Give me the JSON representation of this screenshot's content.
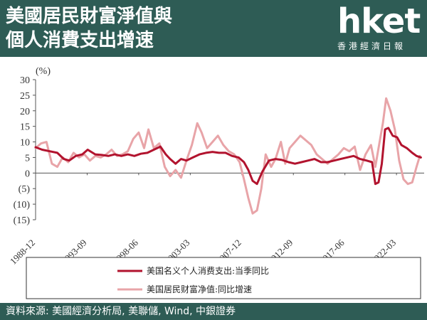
{
  "header": {
    "title_line1": "美國居民財富淨值與",
    "title_line2": "個人消費支出增速"
  },
  "brand": {
    "logo": "hket",
    "subtitle": "香港經濟日報"
  },
  "footer": {
    "source": "資料來源: 美國經濟分析局, 美聯儲, Wind, 中銀證券"
  },
  "colors": {
    "header_bg": "#2e5c55",
    "series_pce": "#b2132e",
    "series_wealth": "#e8a4a8"
  },
  "chart_data": {
    "type": "line",
    "ylabel": "(%)",
    "ylim": [
      -15,
      30
    ],
    "y_ticks": [
      30,
      25,
      20,
      15,
      10,
      5,
      0,
      -5,
      -10,
      -15
    ],
    "y_tick_labels": [
      "30",
      "25",
      "20",
      "15",
      "10",
      "5",
      "0",
      "(5)",
      "(10)",
      "(15)"
    ],
    "x_tick_labels": [
      "1988-12",
      "1993-09",
      "1998-06",
      "2003-03",
      "2007-12",
      "2012-09",
      "2017-06",
      "2022-03"
    ],
    "legend": "bottom-center-boxed",
    "series": [
      {
        "name": "美国名义个人消费支出:当季同比",
        "color": "#b2132e",
        "x": [
          1988.9,
          1989.5,
          1990.2,
          1990.9,
          1991.5,
          1992.0,
          1992.6,
          1993.2,
          1993.7,
          1994.4,
          1995.0,
          1995.6,
          1996.2,
          1996.8,
          1997.4,
          1998.0,
          1998.6,
          1999.2,
          1999.8,
          2000.4,
          2000.9,
          2001.3,
          2001.8,
          2002.3,
          2002.8,
          2003.4,
          2004.0,
          2004.6,
          2005.2,
          2005.8,
          2006.4,
          2007.0,
          2007.6,
          2008.1,
          2008.5,
          2008.9,
          2009.3,
          2009.8,
          2010.4,
          2011.0,
          2011.6,
          2012.2,
          2012.8,
          2013.4,
          2014.0,
          2014.6,
          2015.2,
          2015.8,
          2016.4,
          2017.0,
          2017.6,
          2018.2,
          2018.8,
          2019.4,
          2019.9,
          2020.2,
          2020.5,
          2020.8,
          2021.1,
          2021.4,
          2021.8,
          2022.2,
          2022.6,
          2023.1,
          2023.6,
          2024.0,
          2024.4
        ],
        "values": [
          8.3,
          7.5,
          7.0,
          6.5,
          4.5,
          4.0,
          5.5,
          6.0,
          7.5,
          6.0,
          5.8,
          5.5,
          6.0,
          5.5,
          6.0,
          5.5,
          6.2,
          6.5,
          7.5,
          8.5,
          6.0,
          4.5,
          3.0,
          4.5,
          4.0,
          5.0,
          6.0,
          6.5,
          6.8,
          6.5,
          6.5,
          5.5,
          5.0,
          3.5,
          1.0,
          -2.5,
          -3.5,
          0.5,
          4.0,
          4.5,
          4.2,
          3.5,
          3.0,
          3.5,
          4.0,
          4.5,
          3.5,
          3.5,
          4.0,
          4.5,
          5.0,
          5.5,
          4.5,
          4.0,
          3.5,
          -3.5,
          -3.0,
          3.0,
          14.0,
          14.5,
          12.0,
          11.5,
          9.0,
          8.0,
          6.5,
          5.5,
          5.0
        ]
      },
      {
        "name": "美国居民财富净值:同比增速",
        "color": "#e8a4a8",
        "x": [
          1988.9,
          1989.4,
          1989.9,
          1990.4,
          1990.9,
          1991.4,
          1991.9,
          1992.4,
          1992.9,
          1993.4,
          1993.9,
          1994.4,
          1994.9,
          1995.4,
          1995.9,
          1996.4,
          1996.9,
          1997.4,
          1997.9,
          1998.4,
          1998.9,
          1999.3,
          1999.8,
          2000.3,
          2000.8,
          2001.3,
          2001.8,
          2002.3,
          2002.8,
          2003.3,
          2003.8,
          2004.2,
          2004.7,
          2005.2,
          2005.7,
          2006.2,
          2006.7,
          2007.2,
          2007.7,
          2008.1,
          2008.5,
          2008.9,
          2009.3,
          2009.7,
          2010.1,
          2010.6,
          2011.0,
          2011.5,
          2011.9,
          2012.3,
          2012.8,
          2013.3,
          2013.8,
          2014.3,
          2014.8,
          2015.3,
          2015.8,
          2016.3,
          2016.8,
          2017.3,
          2017.8,
          2018.3,
          2018.8,
          2019.3,
          2019.8,
          2020.2,
          2020.5,
          2020.9,
          2021.2,
          2021.6,
          2022.0,
          2022.4,
          2022.8,
          2023.2,
          2023.6,
          2024.0,
          2024.3
        ],
        "values": [
          8.0,
          9.5,
          10.0,
          3.0,
          2.0,
          5.0,
          3.5,
          6.5,
          5.0,
          6.0,
          4.0,
          5.5,
          5.0,
          6.0,
          7.5,
          5.5,
          6.0,
          7.0,
          11.0,
          13.0,
          8.0,
          14.0,
          8.0,
          9.5,
          2.0,
          -1.0,
          1.0,
          -1.5,
          4.0,
          9.0,
          16.0,
          13.0,
          8.0,
          10.0,
          12.0,
          9.0,
          7.0,
          6.0,
          3.5,
          -2.0,
          -8.0,
          -13.0,
          -12.0,
          -5.0,
          6.0,
          2.0,
          4.5,
          10.0,
          3.0,
          8.0,
          10.0,
          12.0,
          10.5,
          9.0,
          6.0,
          4.5,
          3.0,
          4.5,
          6.0,
          8.0,
          7.0,
          8.5,
          1.0,
          6.0,
          9.0,
          2.0,
          8.0,
          16.0,
          24.0,
          20.0,
          14.0,
          4.0,
          -2.0,
          -3.5,
          -3.0,
          2.0,
          5.5
        ]
      }
    ]
  }
}
